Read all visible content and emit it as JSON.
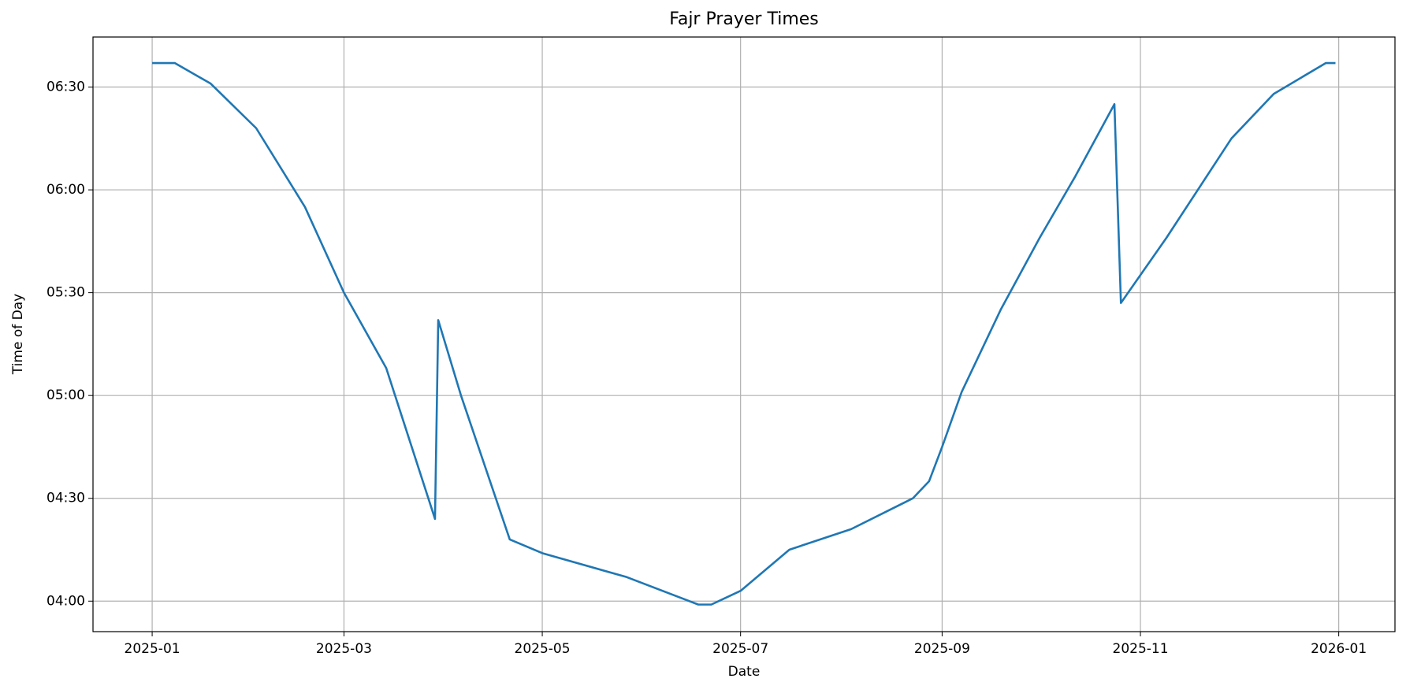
{
  "chart_data": {
    "type": "line",
    "title": "Fajr Prayer Times",
    "x_label": "Date",
    "y_label": "Time of Day",
    "x": [
      0,
      7,
      18,
      32,
      47,
      59,
      72,
      87,
      88,
      95,
      110,
      120,
      146,
      168,
      172,
      181,
      196,
      215,
      234,
      239,
      243,
      249,
      261,
      273,
      284,
      296,
      298,
      312,
      332,
      345,
      361,
      364
    ],
    "values": [
      397,
      397,
      391,
      378,
      355,
      330,
      308,
      264,
      322,
      300,
      258,
      254,
      247,
      239,
      239,
      243,
      255,
      261,
      270,
      275,
      285,
      301,
      325,
      346,
      364,
      385,
      327,
      346,
      375,
      388,
      397,
      397
    ],
    "color": "#1f77b4",
    "xlim": [
      -18.2,
      382.3
    ],
    "xticks": [
      {
        "value": 0,
        "label": "2025-01"
      },
      {
        "value": 59,
        "label": "2025-03"
      },
      {
        "value": 120,
        "label": "2025-05"
      },
      {
        "value": 181,
        "label": "2025-07"
      },
      {
        "value": 243,
        "label": "2025-09"
      },
      {
        "value": 304,
        "label": "2025-11"
      },
      {
        "value": 365,
        "label": "2026-01"
      }
    ],
    "ylim": [
      231.1,
      404.6
    ],
    "yticks": [
      {
        "value": 240,
        "label": "04:00"
      },
      {
        "value": 270,
        "label": "04:30"
      },
      {
        "value": 300,
        "label": "05:00"
      },
      {
        "value": 330,
        "label": "05:30"
      },
      {
        "value": 360,
        "label": "06:00"
      },
      {
        "value": 390,
        "label": "06:30"
      }
    ],
    "grid": true
  }
}
